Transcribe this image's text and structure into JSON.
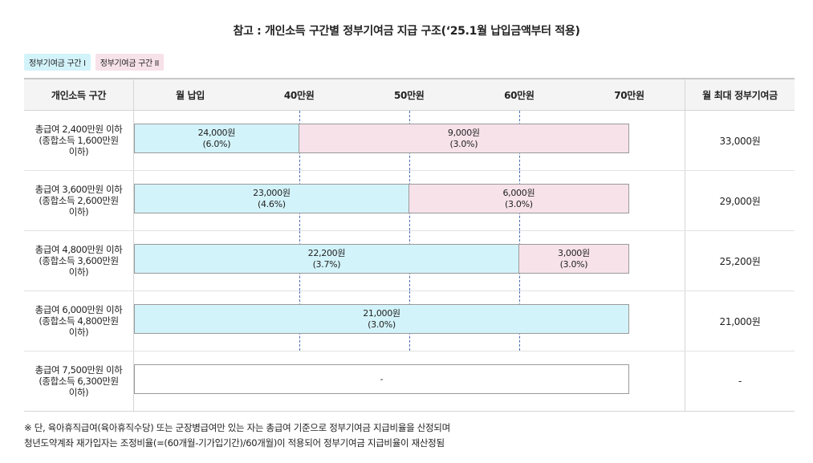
{
  "title": "참고 : 개인소득 구간별 정부기여금 지급 구조(‘25.1월 납입금액부터 적용)",
  "legend": {
    "tier1": "정부기여금 구간 I",
    "tier2": "정부기여금 구간 II"
  },
  "colors": {
    "tier1": "#d3f3fa",
    "tier2": "#f7e2ea",
    "guide_line": "#4a6fb0"
  },
  "header": {
    "income_band": "개인소득 구간",
    "monthly_payment": "월 납입",
    "max_contribution": "월 최대 정부기여금"
  },
  "chart_data": {
    "type": "bar",
    "orientation": "horizontal-stacked",
    "axis": {
      "ticks": [
        {
          "value": 40,
          "label": "40만원"
        },
        {
          "value": 50,
          "label": "50만원"
        },
        {
          "value": 60,
          "label": "60만원"
        },
        {
          "value": 70,
          "label": "70만원"
        }
      ],
      "range": [
        25,
        70
      ],
      "units": "만원"
    },
    "rows": [
      {
        "band_lines": [
          "총급여 2,400만원 이하",
          "(종합소득 1,600만원",
          "이하)"
        ],
        "segments": [
          {
            "tier": 1,
            "from": 25,
            "to": 40,
            "amount": "24,000원",
            "rate": "(6.0%)"
          },
          {
            "tier": 2,
            "from": 40,
            "to": 70,
            "amount": "9,000원",
            "rate": "(3.0%)"
          }
        ],
        "max": "33,000원"
      },
      {
        "band_lines": [
          "총급여 3,600만원 이하",
          "(종합소득 2,600만원",
          "이하)"
        ],
        "segments": [
          {
            "tier": 1,
            "from": 25,
            "to": 50,
            "amount": "23,000원",
            "rate": "(4.6%)"
          },
          {
            "tier": 2,
            "from": 50,
            "to": 70,
            "amount": "6,000원",
            "rate": "(3.0%)"
          }
        ],
        "max": "29,000원"
      },
      {
        "band_lines": [
          "총급여 4,800만원 이하",
          "(종합소득 3,600만원",
          "이하)"
        ],
        "segments": [
          {
            "tier": 1,
            "from": 25,
            "to": 60,
            "amount": "22,200원",
            "rate": "(3.7%)"
          },
          {
            "tier": 2,
            "from": 60,
            "to": 70,
            "amount": "3,000원",
            "rate": "(3.0%)"
          }
        ],
        "max": "25,200원"
      },
      {
        "band_lines": [
          "총급여 6,000만원 이하",
          "(종합소득 4,800만원",
          "이하)"
        ],
        "segments": [
          {
            "tier": 1,
            "from": 25,
            "to": 70,
            "amount": "21,000원",
            "rate": "(3.0%)"
          }
        ],
        "max": "21,000원"
      },
      {
        "band_lines": [
          "총급여 7,500만원 이하",
          "(종합소득 6,300만원",
          "이하)"
        ],
        "segments": [
          {
            "tier": 0,
            "from": 25,
            "to": 70,
            "amount": "-",
            "rate": ""
          }
        ],
        "max": "-"
      }
    ]
  },
  "footnote": {
    "line1": "※ 단, 육아휴직급여(육아휴직수당) 또는 군장병급여만 있는 자는 총급여 기준으로 정부기여금 지급비율을 산정되며",
    "line2": "청년도약계좌 재가입자는 조정비율(=(60개월-기가입기간)/60개월)이 적용되어 정부기여금 지급비율이 재산정됨"
  }
}
